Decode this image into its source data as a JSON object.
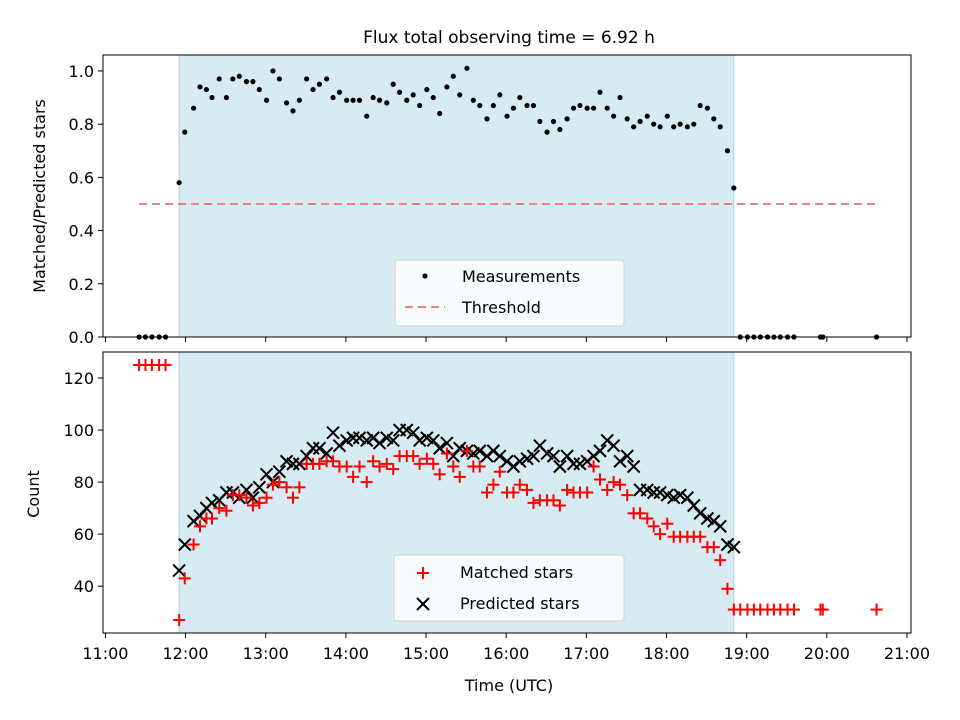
{
  "chart_data": [
    {
      "type": "scatter",
      "title": "Flux total observing time = 6.92 h",
      "xlabel": "",
      "ylabel": "Matched/Predicted stars",
      "xlim": [
        10.97,
        21.05
      ],
      "ylim": [
        0.0,
        1.06
      ],
      "yticks": [
        0.0,
        0.2,
        0.4,
        0.6,
        0.8,
        1.0
      ],
      "ytick_labels": [
        "0.0",
        "0.2",
        "0.4",
        "0.6",
        "0.8",
        "1.0"
      ],
      "shaded_span": [
        11.92,
        18.84
      ],
      "legend": [
        "Measurements",
        "Threshold"
      ],
      "legend_position": "lower center",
      "threshold": {
        "name": "Threshold",
        "value": 0.5,
        "x_range": [
          11.42,
          20.62
        ],
        "color": "#f08080"
      },
      "series": [
        {
          "name": "Measurements",
          "color": "#000000",
          "x": [
            11.42,
            11.5,
            11.58,
            11.67,
            11.75,
            11.92,
            11.99,
            12.1,
            12.18,
            12.26,
            12.33,
            12.42,
            12.51,
            12.59,
            12.67,
            12.76,
            12.84,
            12.92,
            13.01,
            13.09,
            13.17,
            13.26,
            13.34,
            13.42,
            13.51,
            13.59,
            13.67,
            13.76,
            13.84,
            13.92,
            14.01,
            14.09,
            14.17,
            14.26,
            14.34,
            14.42,
            14.51,
            14.59,
            14.67,
            14.76,
            14.84,
            14.92,
            15.01,
            15.09,
            15.17,
            15.26,
            15.34,
            15.42,
            15.51,
            15.59,
            15.67,
            15.76,
            15.84,
            15.92,
            16.01,
            16.09,
            16.17,
            16.26,
            16.34,
            16.42,
            16.51,
            16.59,
            16.67,
            16.76,
            16.84,
            16.92,
            17.01,
            17.09,
            17.17,
            17.26,
            17.34,
            17.42,
            17.51,
            17.59,
            17.67,
            17.76,
            17.84,
            17.92,
            18.01,
            18.09,
            18.17,
            18.26,
            18.34,
            18.42,
            18.51,
            18.59,
            18.67,
            18.76,
            18.84,
            18.92,
            19.01,
            19.09,
            19.17,
            19.26,
            19.34,
            19.42,
            19.51,
            19.59,
            19.92,
            19.95,
            20.62
          ],
          "y": [
            0.0,
            0.0,
            0.0,
            0.0,
            0.0,
            0.58,
            0.77,
            0.86,
            0.94,
            0.93,
            0.9,
            0.97,
            0.9,
            0.97,
            0.98,
            0.96,
            0.96,
            0.93,
            0.89,
            1.0,
            0.97,
            0.88,
            0.85,
            0.89,
            0.97,
            0.93,
            0.95,
            0.97,
            0.9,
            0.92,
            0.89,
            0.89,
            0.89,
            0.83,
            0.9,
            0.89,
            0.88,
            0.95,
            0.92,
            0.89,
            0.91,
            0.87,
            0.93,
            0.9,
            0.84,
            0.94,
            0.98,
            0.91,
            1.01,
            0.89,
            0.87,
            0.82,
            0.87,
            0.91,
            0.83,
            0.86,
            0.9,
            0.87,
            0.87,
            0.81,
            0.77,
            0.81,
            0.78,
            0.82,
            0.86,
            0.87,
            0.86,
            0.86,
            0.92,
            0.86,
            0.83,
            0.9,
            0.82,
            0.79,
            0.81,
            0.83,
            0.8,
            0.79,
            0.83,
            0.79,
            0.8,
            0.79,
            0.8,
            0.87,
            0.86,
            0.82,
            0.79,
            0.7,
            0.56,
            0.0,
            0.0,
            0.0,
            0.0,
            0.0,
            0.0,
            0.0,
            0.0,
            0.0,
            0.0,
            0.0,
            0.0
          ]
        }
      ]
    },
    {
      "type": "scatter",
      "title": "",
      "xlabel": "Time (UTC)",
      "ylabel": "Count",
      "xlim": [
        10.97,
        21.05
      ],
      "ylim": [
        22,
        130
      ],
      "yticks": [
        40,
        60,
        80,
        100,
        120
      ],
      "ytick_labels": [
        "40",
        "60",
        "80",
        "100",
        "120"
      ],
      "xticks": [
        11,
        12,
        13,
        14,
        15,
        16,
        17,
        18,
        19,
        20,
        21
      ],
      "xtick_labels": [
        "11:00",
        "12:00",
        "13:00",
        "14:00",
        "15:00",
        "16:00",
        "17:00",
        "18:00",
        "19:00",
        "20:00",
        "21:00"
      ],
      "shaded_span": [
        11.92,
        18.84
      ],
      "legend": [
        "Matched stars",
        "Predicted stars"
      ],
      "legend_position": "lower center",
      "series": [
        {
          "name": "Matched stars",
          "marker": "+",
          "color": "#ff0000",
          "x": [
            11.42,
            11.5,
            11.58,
            11.67,
            11.75,
            11.92,
            11.99,
            12.1,
            12.18,
            12.26,
            12.33,
            12.42,
            12.51,
            12.59,
            12.67,
            12.76,
            12.84,
            12.92,
            13.01,
            13.09,
            13.17,
            13.26,
            13.34,
            13.42,
            13.51,
            13.59,
            13.67,
            13.76,
            13.84,
            13.92,
            14.01,
            14.09,
            14.17,
            14.26,
            14.34,
            14.42,
            14.51,
            14.59,
            14.67,
            14.76,
            14.84,
            14.92,
            15.01,
            15.09,
            15.17,
            15.26,
            15.34,
            15.42,
            15.51,
            15.59,
            15.67,
            15.76,
            15.84,
            15.92,
            16.01,
            16.09,
            16.17,
            16.26,
            16.34,
            16.42,
            16.51,
            16.59,
            16.67,
            16.76,
            16.84,
            16.92,
            17.01,
            17.09,
            17.17,
            17.26,
            17.34,
            17.42,
            17.51,
            17.59,
            17.67,
            17.76,
            17.84,
            17.92,
            18.01,
            18.09,
            18.17,
            18.26,
            18.34,
            18.42,
            18.51,
            18.59,
            18.67,
            18.76,
            18.84,
            18.92,
            19.01,
            19.09,
            19.17,
            19.26,
            19.34,
            19.42,
            19.51,
            19.59,
            19.92,
            19.95,
            20.62
          ],
          "y": [
            125,
            125,
            125,
            125,
            125,
            27,
            43,
            56,
            63,
            66,
            66,
            70,
            69,
            75,
            75,
            74,
            71,
            72,
            74,
            79,
            80,
            78,
            74,
            78,
            87,
            87,
            87,
            88,
            88,
            86,
            86,
            82,
            86,
            80,
            88,
            86,
            87,
            85,
            90,
            90,
            90,
            87,
            89,
            87,
            83,
            91,
            86,
            82,
            92,
            86,
            86,
            76,
            79,
            84,
            76,
            76,
            79,
            77,
            72,
            73,
            73,
            73,
            71,
            77,
            76,
            76,
            76,
            86,
            81,
            77,
            80,
            79,
            75,
            68,
            68,
            66,
            63,
            60,
            64,
            59,
            59,
            59,
            59,
            59,
            55,
            55,
            50,
            39,
            31,
            31,
            31,
            31,
            31,
            31,
            31,
            31,
            31,
            31,
            31,
            31,
            31
          ]
        },
        {
          "name": "Predicted stars",
          "marker": "x",
          "color": "#000000",
          "x": [
            11.92,
            11.99,
            12.1,
            12.18,
            12.26,
            12.33,
            12.42,
            12.51,
            12.59,
            12.67,
            12.76,
            12.84,
            12.92,
            13.01,
            13.09,
            13.17,
            13.26,
            13.34,
            13.42,
            13.51,
            13.59,
            13.67,
            13.76,
            13.84,
            13.92,
            14.01,
            14.09,
            14.17,
            14.26,
            14.34,
            14.42,
            14.51,
            14.59,
            14.67,
            14.76,
            14.84,
            14.92,
            15.01,
            15.09,
            15.17,
            15.26,
            15.34,
            15.42,
            15.51,
            15.59,
            15.67,
            15.76,
            15.84,
            15.92,
            16.01,
            16.09,
            16.17,
            16.26,
            16.34,
            16.42,
            16.51,
            16.59,
            16.67,
            16.76,
            16.84,
            16.92,
            17.01,
            17.09,
            17.17,
            17.26,
            17.34,
            17.42,
            17.51,
            17.59,
            17.67,
            17.76,
            17.84,
            17.92,
            18.01,
            18.09,
            18.17,
            18.26,
            18.34,
            18.42,
            18.51,
            18.59,
            18.67,
            18.76,
            18.84
          ],
          "y": [
            46,
            56,
            65,
            67,
            70,
            72,
            73,
            76,
            76,
            74,
            77,
            74,
            78,
            83,
            80,
            84,
            88,
            87,
            87,
            90,
            93,
            93,
            91,
            99,
            94,
            96,
            97,
            97,
            96,
            97,
            95,
            97,
            96,
            100,
            100,
            99,
            96,
            97,
            96,
            93,
            95,
            90,
            93,
            92,
            91,
            92,
            90,
            92,
            90,
            88,
            86,
            88,
            89,
            90,
            94,
            91,
            90,
            86,
            90,
            87,
            87,
            88,
            90,
            92,
            96,
            94,
            88,
            90,
            86,
            77,
            77,
            76,
            76,
            75,
            74,
            75,
            74,
            71,
            68,
            66,
            65,
            63,
            56,
            55
          ]
        }
      ]
    }
  ]
}
